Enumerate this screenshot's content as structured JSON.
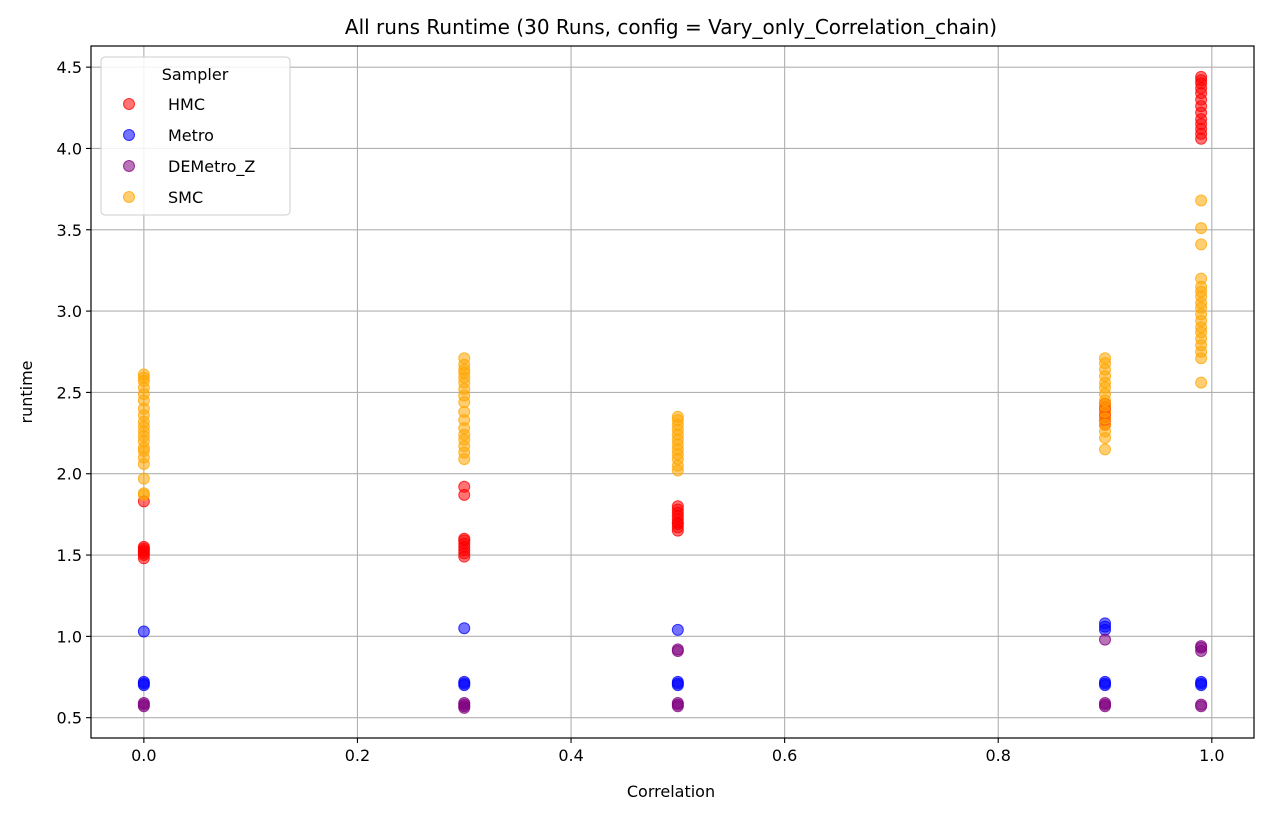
{
  "chart_data": {
    "type": "scatter",
    "title": "All runs Runtime (30 Runs, config = Vary_only_Correlation_chain)",
    "xlabel": "Correlation",
    "ylabel": "runtime",
    "xlim": [
      -0.0495,
      1.0395
    ],
    "ylim": [
      0.375,
      4.63
    ],
    "xticks": [
      0.0,
      0.2,
      0.4,
      0.6,
      0.8,
      1.0
    ],
    "xtick_labels": [
      "0.0",
      "0.2",
      "0.4",
      "0.6",
      "0.8",
      "1.0"
    ],
    "yticks": [
      0.5,
      1.0,
      1.5,
      2.0,
      2.5,
      3.0,
      3.5,
      4.0,
      4.5
    ],
    "ytick_labels": [
      "0.5",
      "1.0",
      "1.5",
      "2.0",
      "2.5",
      "3.0",
      "3.5",
      "4.0",
      "4.5"
    ],
    "grid": true,
    "legend": {
      "title": "Sampler",
      "placement": "top-left"
    },
    "series": [
      {
        "name": "HMC",
        "color": "#ff0000",
        "points": [
          [
            0.0,
            1.48
          ],
          [
            0.0,
            1.5
          ],
          [
            0.0,
            1.51
          ],
          [
            0.0,
            1.52
          ],
          [
            0.0,
            1.53
          ],
          [
            0.0,
            1.54
          ],
          [
            0.0,
            1.55
          ],
          [
            0.0,
            1.83
          ],
          [
            0.3,
            1.49
          ],
          [
            0.3,
            1.51
          ],
          [
            0.3,
            1.53
          ],
          [
            0.3,
            1.55
          ],
          [
            0.3,
            1.57
          ],
          [
            0.3,
            1.59
          ],
          [
            0.3,
            1.6
          ],
          [
            0.3,
            1.87
          ],
          [
            0.3,
            1.92
          ],
          [
            0.5,
            1.65
          ],
          [
            0.5,
            1.67
          ],
          [
            0.5,
            1.69
          ],
          [
            0.5,
            1.7
          ],
          [
            0.5,
            1.72
          ],
          [
            0.5,
            1.74
          ],
          [
            0.5,
            1.76
          ],
          [
            0.5,
            1.78
          ],
          [
            0.5,
            1.8
          ],
          [
            0.9,
            2.3
          ],
          [
            0.9,
            2.33
          ],
          [
            0.9,
            2.35
          ],
          [
            0.9,
            2.37
          ],
          [
            0.9,
            2.39
          ],
          [
            0.9,
            2.41
          ],
          [
            0.9,
            2.43
          ],
          [
            0.99,
            4.06
          ],
          [
            0.99,
            4.09
          ],
          [
            0.99,
            4.12
          ],
          [
            0.99,
            4.15
          ],
          [
            0.99,
            4.18
          ],
          [
            0.99,
            4.22
          ],
          [
            0.99,
            4.26
          ],
          [
            0.99,
            4.3
          ],
          [
            0.99,
            4.34
          ],
          [
            0.99,
            4.37
          ],
          [
            0.99,
            4.4
          ],
          [
            0.99,
            4.42
          ],
          [
            0.99,
            4.44
          ]
        ]
      },
      {
        "name": "Metro",
        "color": "#0000ff",
        "points": [
          [
            0.0,
            0.7
          ],
          [
            0.0,
            0.71
          ],
          [
            0.0,
            0.72
          ],
          [
            0.0,
            1.03
          ],
          [
            0.3,
            0.7
          ],
          [
            0.3,
            0.71
          ],
          [
            0.3,
            0.72
          ],
          [
            0.3,
            1.05
          ],
          [
            0.5,
            0.7
          ],
          [
            0.5,
            0.71
          ],
          [
            0.5,
            0.72
          ],
          [
            0.5,
            1.04
          ],
          [
            0.9,
            0.7
          ],
          [
            0.9,
            0.71
          ],
          [
            0.9,
            0.72
          ],
          [
            0.9,
            1.04
          ],
          [
            0.9,
            1.06
          ],
          [
            0.9,
            1.08
          ],
          [
            0.99,
            0.7
          ],
          [
            0.99,
            0.71
          ],
          [
            0.99,
            0.72
          ]
        ]
      },
      {
        "name": "DEMetro_Z",
        "color": "#800080",
        "points": [
          [
            0.0,
            0.57
          ],
          [
            0.0,
            0.58
          ],
          [
            0.0,
            0.59
          ],
          [
            0.3,
            0.56
          ],
          [
            0.3,
            0.57
          ],
          [
            0.3,
            0.58
          ],
          [
            0.3,
            0.59
          ],
          [
            0.5,
            0.57
          ],
          [
            0.5,
            0.58
          ],
          [
            0.5,
            0.59
          ],
          [
            0.5,
            0.91
          ],
          [
            0.5,
            0.92
          ],
          [
            0.9,
            0.57
          ],
          [
            0.9,
            0.58
          ],
          [
            0.9,
            0.59
          ],
          [
            0.9,
            0.98
          ],
          [
            0.99,
            0.57
          ],
          [
            0.99,
            0.58
          ],
          [
            0.99,
            0.91
          ],
          [
            0.99,
            0.93
          ],
          [
            0.99,
            0.94
          ]
        ]
      },
      {
        "name": "SMC",
        "color": "#ffa500",
        "points": [
          [
            0.0,
            1.87
          ],
          [
            0.0,
            1.88
          ],
          [
            0.0,
            1.97
          ],
          [
            0.0,
            2.06
          ],
          [
            0.0,
            2.1
          ],
          [
            0.0,
            2.14
          ],
          [
            0.0,
            2.16
          ],
          [
            0.0,
            2.2
          ],
          [
            0.0,
            2.23
          ],
          [
            0.0,
            2.26
          ],
          [
            0.0,
            2.29
          ],
          [
            0.0,
            2.32
          ],
          [
            0.0,
            2.36
          ],
          [
            0.0,
            2.4
          ],
          [
            0.0,
            2.45
          ],
          [
            0.0,
            2.49
          ],
          [
            0.0,
            2.53
          ],
          [
            0.0,
            2.57
          ],
          [
            0.0,
            2.59
          ],
          [
            0.0,
            2.61
          ],
          [
            0.3,
            2.09
          ],
          [
            0.3,
            2.13
          ],
          [
            0.3,
            2.17
          ],
          [
            0.3,
            2.21
          ],
          [
            0.3,
            2.24
          ],
          [
            0.3,
            2.28
          ],
          [
            0.3,
            2.33
          ],
          [
            0.3,
            2.38
          ],
          [
            0.3,
            2.44
          ],
          [
            0.3,
            2.48
          ],
          [
            0.3,
            2.52
          ],
          [
            0.3,
            2.56
          ],
          [
            0.3,
            2.59
          ],
          [
            0.3,
            2.62
          ],
          [
            0.3,
            2.64
          ],
          [
            0.3,
            2.67
          ],
          [
            0.3,
            2.71
          ],
          [
            0.5,
            2.02
          ],
          [
            0.5,
            2.05
          ],
          [
            0.5,
            2.09
          ],
          [
            0.5,
            2.12
          ],
          [
            0.5,
            2.15
          ],
          [
            0.5,
            2.18
          ],
          [
            0.5,
            2.21
          ],
          [
            0.5,
            2.24
          ],
          [
            0.5,
            2.27
          ],
          [
            0.5,
            2.3
          ],
          [
            0.5,
            2.33
          ],
          [
            0.5,
            2.35
          ],
          [
            0.9,
            2.15
          ],
          [
            0.9,
            2.22
          ],
          [
            0.9,
            2.26
          ],
          [
            0.9,
            2.3
          ],
          [
            0.9,
            2.34
          ],
          [
            0.9,
            2.38
          ],
          [
            0.9,
            2.42
          ],
          [
            0.9,
            2.45
          ],
          [
            0.9,
            2.49
          ],
          [
            0.9,
            2.53
          ],
          [
            0.9,
            2.56
          ],
          [
            0.9,
            2.6
          ],
          [
            0.9,
            2.64
          ],
          [
            0.9,
            2.68
          ],
          [
            0.9,
            2.71
          ],
          [
            0.99,
            2.56
          ],
          [
            0.99,
            2.71
          ],
          [
            0.99,
            2.75
          ],
          [
            0.99,
            2.79
          ],
          [
            0.99,
            2.83
          ],
          [
            0.99,
            2.87
          ],
          [
            0.99,
            2.9
          ],
          [
            0.99,
            2.94
          ],
          [
            0.99,
            2.98
          ],
          [
            0.99,
            3.02
          ],
          [
            0.99,
            3.05
          ],
          [
            0.99,
            3.09
          ],
          [
            0.99,
            3.12
          ],
          [
            0.99,
            3.15
          ],
          [
            0.99,
            3.2
          ],
          [
            0.99,
            3.41
          ],
          [
            0.99,
            3.51
          ],
          [
            0.99,
            3.68
          ]
        ]
      }
    ]
  }
}
